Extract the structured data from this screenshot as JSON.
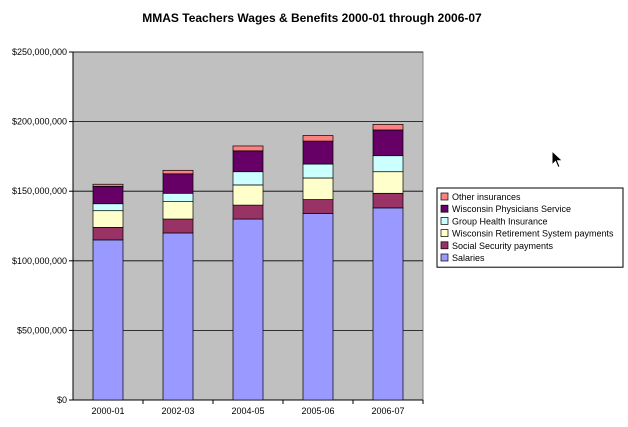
{
  "chart_data": {
    "type": "bar",
    "stacked": true,
    "title": "MMAS Teachers Wages & Benefits 2000-01 through 2006-07",
    "xlabel": "",
    "ylabel": "",
    "categories": [
      "2000-01",
      "2002-03",
      "2004-05",
      "2005-06",
      "2006-07"
    ],
    "ylim": [
      0,
      250000000
    ],
    "yticks": [
      0,
      50000000,
      100000000,
      150000000,
      200000000,
      250000000
    ],
    "ytick_labels": [
      "$0",
      "$50,000,000",
      "$100,000,000",
      "$150,000,000",
      "$200,000,000",
      "$250,000,000"
    ],
    "grid": true,
    "plot_background": "#C0C0C0",
    "legend_position": "right",
    "series": [
      {
        "name": "Salaries",
        "color": "#9999FF",
        "values": [
          115000000,
          120000000,
          130000000,
          134000000,
          138000000
        ]
      },
      {
        "name": "Social Security payments",
        "color": "#993366",
        "values": [
          9000000,
          10000000,
          10000000,
          10000000,
          10500000
        ]
      },
      {
        "name": "Wisconsin Retirement System payments",
        "color": "#FFFFCC",
        "values": [
          12000000,
          12500000,
          14500000,
          15500000,
          15500000
        ]
      },
      {
        "name": "Group Health Insurance",
        "color": "#CCFFFF",
        "values": [
          5000000,
          6000000,
          9500000,
          10000000,
          11500000
        ]
      },
      {
        "name": "Wisconsin Physicians Service",
        "color": "#660066",
        "values": [
          12500000,
          14000000,
          15000000,
          16500000,
          18500000
        ]
      },
      {
        "name": "Other insurances",
        "color": "#FF8080",
        "values": [
          1500000,
          2500000,
          3500000,
          4000000,
          4000000
        ]
      }
    ]
  }
}
